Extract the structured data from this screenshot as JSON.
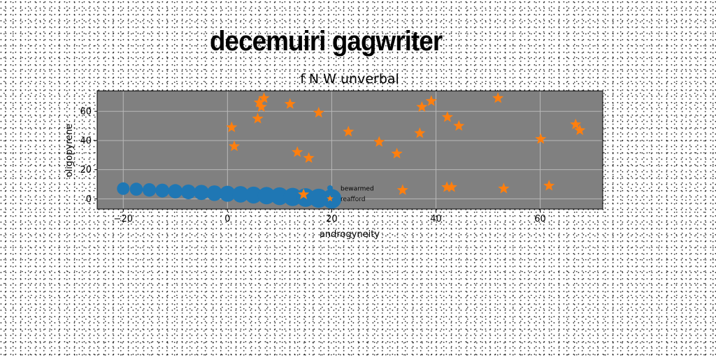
{
  "banner_text": "decemuiri gagwriter",
  "chart_data": {
    "type": "scatter",
    "title": "f N W unverbal",
    "xlabel": "androgyneity",
    "ylabel": "oligopyrene",
    "xlim": [
      -25,
      72
    ],
    "ylim": [
      -7,
      74
    ],
    "xticks": [
      -20,
      0,
      20,
      40,
      60
    ],
    "yticks": [
      0,
      20,
      40,
      60
    ],
    "grid": true,
    "background": "#808080",
    "legend_placement": "lower-center",
    "series": [
      {
        "name": "bewarmed",
        "marker": "circle",
        "color": "#1f77b4",
        "x": [
          -20.0,
          -17.5,
          -15.0,
          -12.5,
          -10.0,
          -7.5,
          -5.0,
          -2.5,
          0.0,
          2.5,
          5.0,
          7.5,
          10.0,
          12.5,
          15.0,
          17.5,
          20.0
        ],
        "y": [
          7.0,
          6.6,
          6.1,
          5.7,
          5.2,
          4.8,
          4.4,
          3.9,
          3.5,
          3.1,
          2.6,
          2.2,
          1.8,
          1.3,
          0.9,
          0.4,
          0.0
        ]
      },
      {
        "name": "reafford",
        "marker": "star",
        "color": "#ff7f0e",
        "x": [
          0.8,
          1.3,
          5.8,
          6.1,
          6.5,
          7.0,
          12.0,
          13.4,
          14.6,
          15.6,
          17.5,
          23.2,
          29.1,
          32.5,
          33.6,
          36.9,
          37.3,
          39.1,
          42.2,
          42.1,
          43.0,
          44.4,
          51.9,
          53.0,
          60.1,
          61.7,
          66.8,
          67.6
        ],
        "y": [
          49,
          36,
          55,
          66,
          63,
          69,
          65,
          32,
          3,
          28,
          59,
          46,
          39,
          31,
          6,
          45,
          63,
          67,
          56,
          8,
          8,
          50,
          69,
          7,
          41,
          9,
          51,
          47
        ]
      }
    ]
  }
}
